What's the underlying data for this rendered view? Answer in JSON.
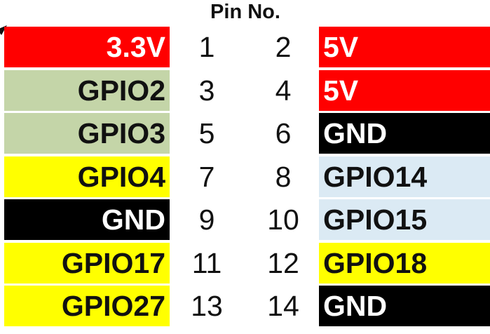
{
  "header": {
    "title": "Pin No."
  },
  "colors": {
    "power_red": "#ff0000",
    "gpio_sage": "#c4d5a8",
    "gpio_yellow": "#ffff00",
    "ground_black": "#000000",
    "gpio_lightblue": "#dbeaf4"
  },
  "rows": [
    {
      "left_label": "3.3V",
      "left_bg": "#ff0000",
      "left_fg": "#ffffff",
      "left_pin": "1",
      "right_pin": "2",
      "right_label": "5V",
      "right_bg": "#ff0000",
      "right_fg": "#ffffff"
    },
    {
      "left_label": "GPIO2",
      "left_bg": "#c4d5a8",
      "left_fg": "#111111",
      "left_pin": "3",
      "right_pin": "4",
      "right_label": "5V",
      "right_bg": "#ff0000",
      "right_fg": "#ffffff"
    },
    {
      "left_label": "GPIO3",
      "left_bg": "#c4d5a8",
      "left_fg": "#111111",
      "left_pin": "5",
      "right_pin": "6",
      "right_label": "GND",
      "right_bg": "#000000",
      "right_fg": "#ffffff"
    },
    {
      "left_label": "GPIO4",
      "left_bg": "#ffff00",
      "left_fg": "#111111",
      "left_pin": "7",
      "right_pin": "8",
      "right_label": "GPIO14",
      "right_bg": "#dbeaf4",
      "right_fg": "#111111"
    },
    {
      "left_label": "GND",
      "left_bg": "#000000",
      "left_fg": "#ffffff",
      "left_pin": "9",
      "right_pin": "10",
      "right_label": "GPIO15",
      "right_bg": "#dbeaf4",
      "right_fg": "#111111"
    },
    {
      "left_label": "GPIO17",
      "left_bg": "#ffff00",
      "left_fg": "#111111",
      "left_pin": "11",
      "right_pin": "12",
      "right_label": "GPIO18",
      "right_bg": "#ffff00",
      "right_fg": "#111111"
    },
    {
      "left_label": "GPIO27",
      "left_bg": "#ffff00",
      "left_fg": "#111111",
      "left_pin": "13",
      "right_pin": "14",
      "right_label": "GND",
      "right_bg": "#000000",
      "right_fg": "#ffffff"
    }
  ]
}
